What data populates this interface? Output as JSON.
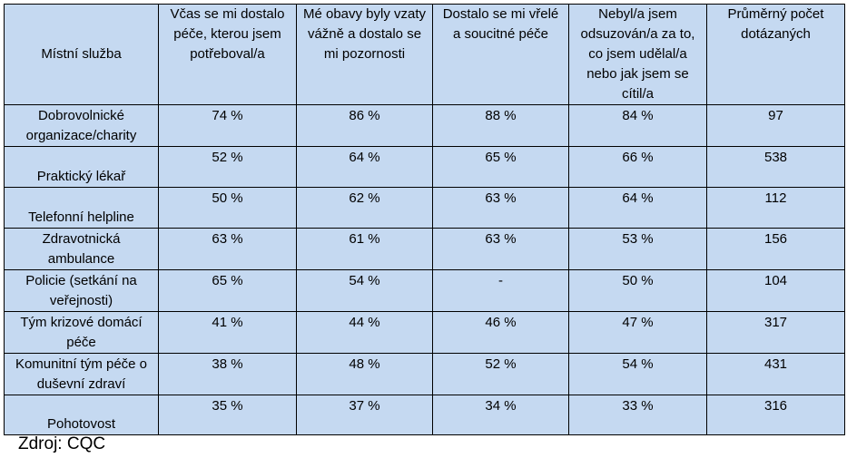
{
  "table": {
    "headers": [
      "Místní služba",
      "Včas se mi dostalo péče, kterou jsem potřeboval/a",
      "Mé obavy byly vzaty vážně a dostalo se mi pozornosti",
      "Dostalo se mi vřelé a soucitné péče",
      "Nebyl/a jsem odsuzován/a za to, co jsem udělal/a nebo jak jsem se cítil/a",
      "Průměrný počet dotázaných"
    ],
    "rows": [
      {
        "service": "Dobrovolnické organizace/charity",
        "c1": "74 %",
        "c2": "86 %",
        "c3": "88 %",
        "c4": "84 %",
        "count": "97"
      },
      {
        "service": "Praktický lékař",
        "c1": "52 %",
        "c2": "64 %",
        "c3": "65 %",
        "c4": "66 %",
        "count": "538"
      },
      {
        "service": "Telefonní helpline",
        "c1": "50 %",
        "c2": "62 %",
        "c3": "63 %",
        "c4": "64 %",
        "count": "112"
      },
      {
        "service": "Zdravotnická ambulance",
        "c1": "63 %",
        "c2": "61 %",
        "c3": "63 %",
        "c4": "53 %",
        "count": "156"
      },
      {
        "service": "Policie (setkání na veřejnosti)",
        "c1": "65 %",
        "c2": "54 %",
        "c3": "-",
        "c4": "50 %",
        "count": "104"
      },
      {
        "service": "Tým krizové domácí péče",
        "c1": "41 %",
        "c2": "44 %",
        "c3": "46 %",
        "c4": "47 %",
        "count": "317"
      },
      {
        "service": "Komunitní tým péče o duševní zdraví",
        "c1": "38 %",
        "c2": "48 %",
        "c3": "52 %",
        "c4": "54 %",
        "count": "431"
      },
      {
        "service": "Pohotovost",
        "c1": "35 %",
        "c2": "37 %",
        "c3": "34 %",
        "c4": "33 %",
        "count": "316"
      }
    ]
  },
  "source": "Zdroj: CQC"
}
